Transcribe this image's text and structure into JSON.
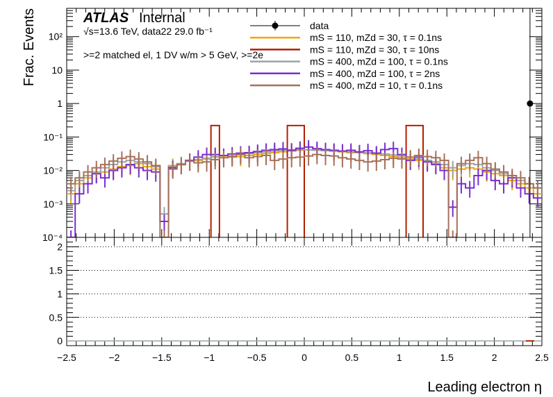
{
  "chart_data": {
    "type": "line",
    "title": "",
    "experiment_label": "ATLAS",
    "experiment_status": "Internal",
    "energy_label": "√s=13.6 TeV, data22 29.0 fb⁻¹",
    "selection_label": ">=2 matched el, 1 DV w/m > 5 GeV, >=2e",
    "xlabel": "Leading electron η",
    "ylabel": "Frac. Events",
    "xlim": [
      -2.5,
      2.5
    ],
    "ylim": [
      0.0001,
      700
    ],
    "yscale": "log",
    "ratio_ylim": [
      -0.1,
      2.2
    ],
    "legend_position": "top-right",
    "x_ticks": [
      "−2.5",
      "−2",
      "−1.5",
      "−1",
      "−0.5",
      "0",
      "0.5",
      "1",
      "1.5",
      "2",
      "2.5"
    ],
    "y_ticks": [
      "10⁻⁴",
      "10⁻³",
      "10⁻²",
      "10⁻¹",
      "1",
      "10",
      "10²"
    ],
    "ratio_ticks": [
      "0",
      "0.5",
      "1",
      "1.5",
      "2"
    ],
    "ratio_dotted_lines": [
      0.5,
      1,
      1.5,
      2
    ],
    "series": [
      {
        "name": "data",
        "style": "points",
        "color": "#000000",
        "points": [
          {
            "x": 2.375,
            "y": 1.0
          }
        ]
      },
      {
        "name": "mS = 110, mZd = 30, τ = 0.1ns",
        "style": "step",
        "color": "#f5a500",
        "values": [
          0.002,
          0.004,
          0.006,
          0.008,
          0.009,
          0.011,
          0.013,
          0.014,
          0.016,
          0.013,
          0.011,
          0.0003,
          0.014,
          0.015,
          0.019,
          0.02,
          0.022,
          0.025,
          0.027,
          0.025,
          0.026,
          0.028,
          0.03,
          0.032,
          0.034,
          0.036,
          0.038,
          0.04,
          0.041,
          0.042,
          0.04,
          0.038,
          0.036,
          0.034,
          0.034,
          0.032,
          0.03,
          0.028,
          0.026,
          0.024,
          0.022,
          0.02,
          0.018,
          0.016,
          0.012,
          0.01,
          0.011,
          0.012,
          0.011,
          0.009,
          0.008,
          0.007,
          0.005,
          0.004,
          0.003,
          0.002
        ]
      },
      {
        "name": "mS = 110, mZd = 30, τ = 10ns",
        "style": "step",
        "color": "#b21e00",
        "values": [
          0,
          0,
          0,
          0,
          0,
          0,
          0,
          0,
          0,
          0,
          0,
          0,
          0,
          0,
          0,
          0,
          0,
          0.22,
          0,
          0,
          0,
          0,
          0,
          0,
          0,
          0,
          0.22,
          0.22,
          0,
          0,
          0,
          0,
          0,
          0,
          0,
          0,
          0,
          0,
          0,
          0,
          0.22,
          0.22,
          0,
          0,
          0,
          0,
          0,
          0,
          0,
          0,
          0,
          0,
          0,
          0,
          0,
          0
        ]
      },
      {
        "name": "mS = 400, mZd = 100, τ = 0.1ns",
        "style": "step",
        "color": "#9aa4a8",
        "values": [
          0.0025,
          0.005,
          0.007,
          0.009,
          0.012,
          0.015,
          0.018,
          0.02,
          0.018,
          0.016,
          0.013,
          0.0005,
          0.013,
          0.016,
          0.019,
          0.021,
          0.023,
          0.026,
          0.028,
          0.027,
          0.03,
          0.032,
          0.034,
          0.036,
          0.038,
          0.04,
          0.041,
          0.042,
          0.041,
          0.04,
          0.039,
          0.038,
          0.037,
          0.036,
          0.035,
          0.034,
          0.033,
          0.031,
          0.029,
          0.027,
          0.025,
          0.022,
          0.02,
          0.018,
          0.015,
          0.012,
          0.014,
          0.016,
          0.015,
          0.012,
          0.01,
          0.008,
          0.006,
          0.005,
          0.004,
          0.003
        ]
      },
      {
        "name": "mS = 400, mZd = 100, τ = 2ns",
        "style": "step",
        "color": "#7a2ed0",
        "values": [
          0.0001,
          0.002,
          0.004,
          0.008,
          0.006,
          0.01,
          0.012,
          0.015,
          0.012,
          0.01,
          0.009,
          0.0003,
          0.012,
          0.015,
          0.02,
          0.025,
          0.03,
          0.03,
          0.028,
          0.031,
          0.033,
          0.034,
          0.037,
          0.04,
          0.042,
          0.044,
          0.04,
          0.046,
          0.05,
          0.045,
          0.042,
          0.04,
          0.038,
          0.04,
          0.036,
          0.039,
          0.033,
          0.042,
          0.045,
          0.03,
          0.02,
          0.025,
          0.018,
          0.015,
          0.01,
          0.0008,
          0.004,
          0.003,
          0.007,
          0.01,
          0.005,
          0.004,
          0.006,
          0.003,
          0.002,
          0.0015
        ]
      },
      {
        "name": "mS = 400, mZd = 10, τ = 0.1ns",
        "style": "step",
        "color": "#a6715a",
        "values": [
          0.004,
          0.006,
          0.009,
          0.012,
          0.015,
          0.019,
          0.023,
          0.026,
          0.022,
          0.018,
          0.014,
          0.0001,
          0.011,
          0.015,
          0.019,
          0.017,
          0.018,
          0.021,
          0.024,
          0.026,
          0.03,
          0.024,
          0.026,
          0.028,
          0.02,
          0.022,
          0.024,
          0.025,
          0.027,
          0.03,
          0.028,
          0.027,
          0.024,
          0.022,
          0.02,
          0.018,
          0.019,
          0.021,
          0.023,
          0.022,
          0.025,
          0.028,
          0.026,
          0.024,
          0.02,
          0.0001,
          0.016,
          0.02,
          0.024,
          0.016,
          0.011,
          0.009,
          0.007,
          0.006,
          0.004,
          0.003
        ]
      }
    ],
    "ratio_series": [
      {
        "name": "data",
        "color": "#000000",
        "x": [
          2.375
        ],
        "y": [
          0.0
        ]
      }
    ]
  }
}
